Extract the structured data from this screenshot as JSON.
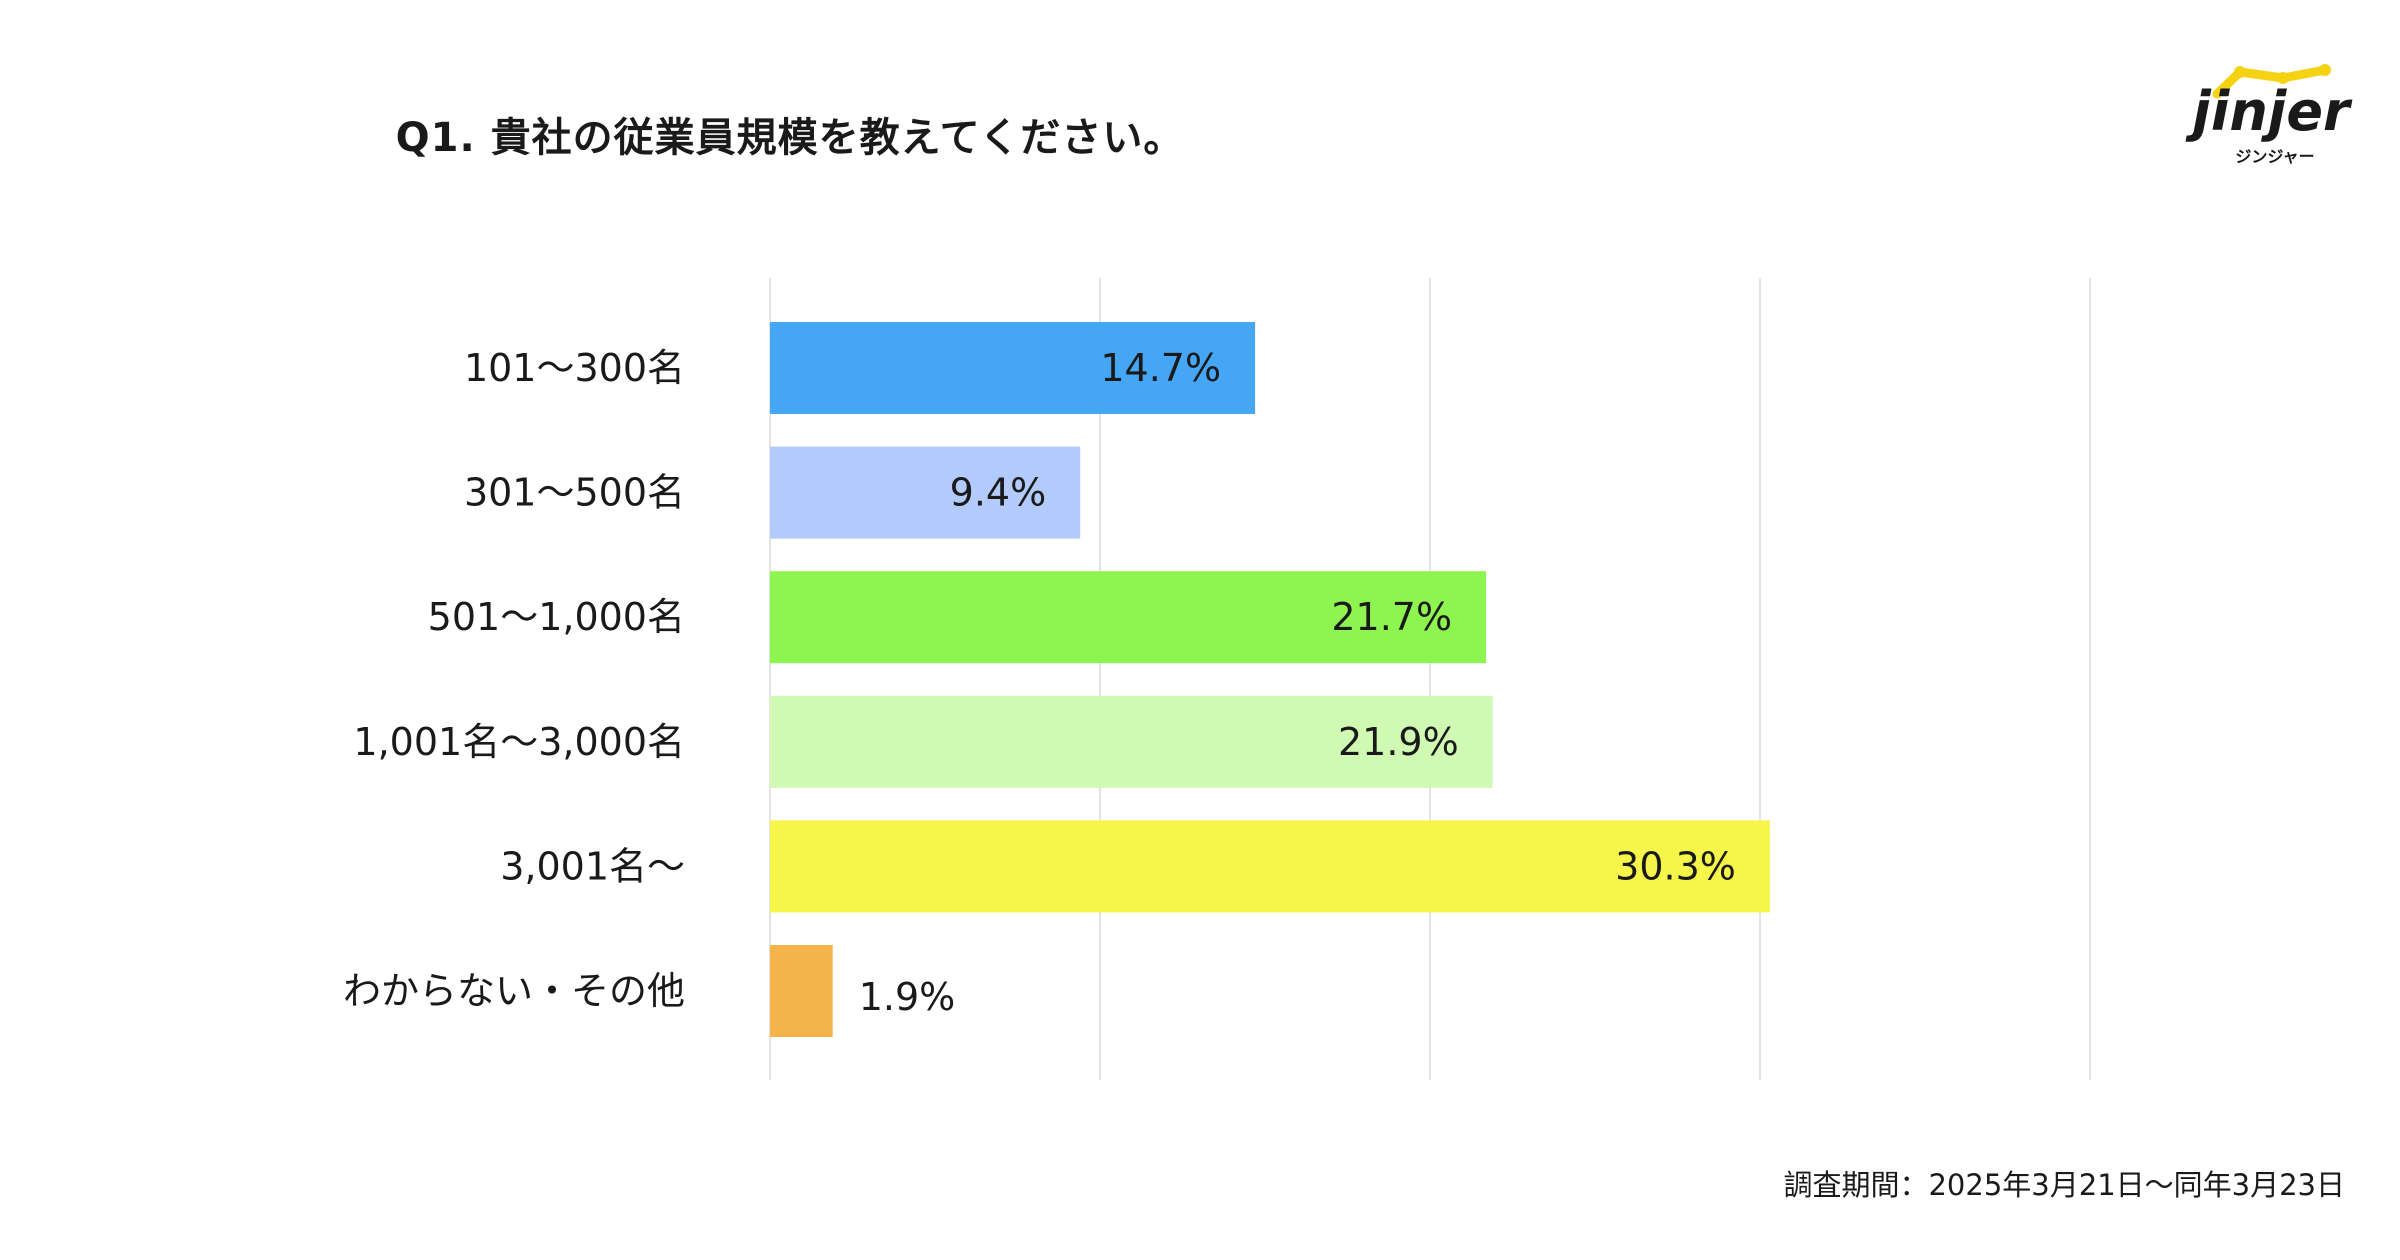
{
  "header": {
    "title": "Q1. 貴社の従業員規模を教えてください。"
  },
  "logo": {
    "wordmark": "jinjer",
    "kana": "ジンジャー",
    "accent_color": "#f5d312",
    "text_color": "#1a1a1a"
  },
  "chart_data": {
    "type": "bar",
    "orientation": "horizontal",
    "title": "Q1. 貴社の従業員規模を教えてください。",
    "categories": [
      "101〜300名",
      "301〜500名",
      "501〜1,000名",
      "1,001名〜3,000名",
      "3,001名〜",
      "わからない・その他"
    ],
    "values": [
      14.7,
      9.4,
      21.7,
      21.9,
      30.3,
      1.9
    ],
    "value_labels": [
      "14.7%",
      "9.4%",
      "21.7%",
      "21.9%",
      "30.3%",
      "1.9%"
    ],
    "colors": [
      "#45a6f5",
      "#b3cafc",
      "#8ef550",
      "#d0f9b3",
      "#f5f54a",
      "#f5b34c"
    ],
    "xlim": [
      0,
      40
    ],
    "x_gridlines": [
      0,
      10,
      20,
      30,
      40
    ],
    "grid": true,
    "legend": "none",
    "xlabel": "",
    "ylabel": ""
  },
  "footnote": {
    "text": "調査期間：2025年3月21日〜同年3月23日"
  }
}
